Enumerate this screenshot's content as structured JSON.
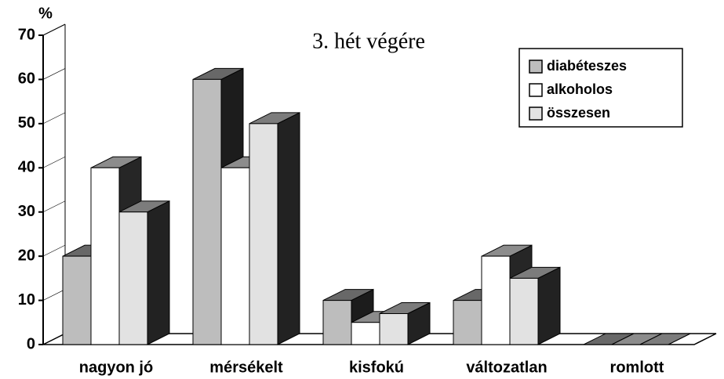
{
  "chart_data": {
    "type": "bar3d",
    "title": "3. hét végére",
    "y_label": "%",
    "categories": [
      "nagyon jó",
      "mérsékelt",
      "kisfokú",
      "változatlan",
      "romlott"
    ],
    "series": [
      {
        "name": "diabéteszes",
        "color": "#bdbdbd",
        "values": [
          20,
          60,
          10,
          10,
          0
        ]
      },
      {
        "name": "alkoholos",
        "color": "#ffffff",
        "values": [
          40,
          40,
          5,
          20,
          0
        ]
      },
      {
        "name": "összesen",
        "color": "#e2e2e2",
        "values": [
          30,
          50,
          7,
          15,
          0
        ]
      }
    ],
    "ylim": [
      0,
      70
    ],
    "yticks": [
      0,
      10,
      20,
      30,
      40,
      50,
      60,
      70
    ],
    "legend": "top-right"
  }
}
